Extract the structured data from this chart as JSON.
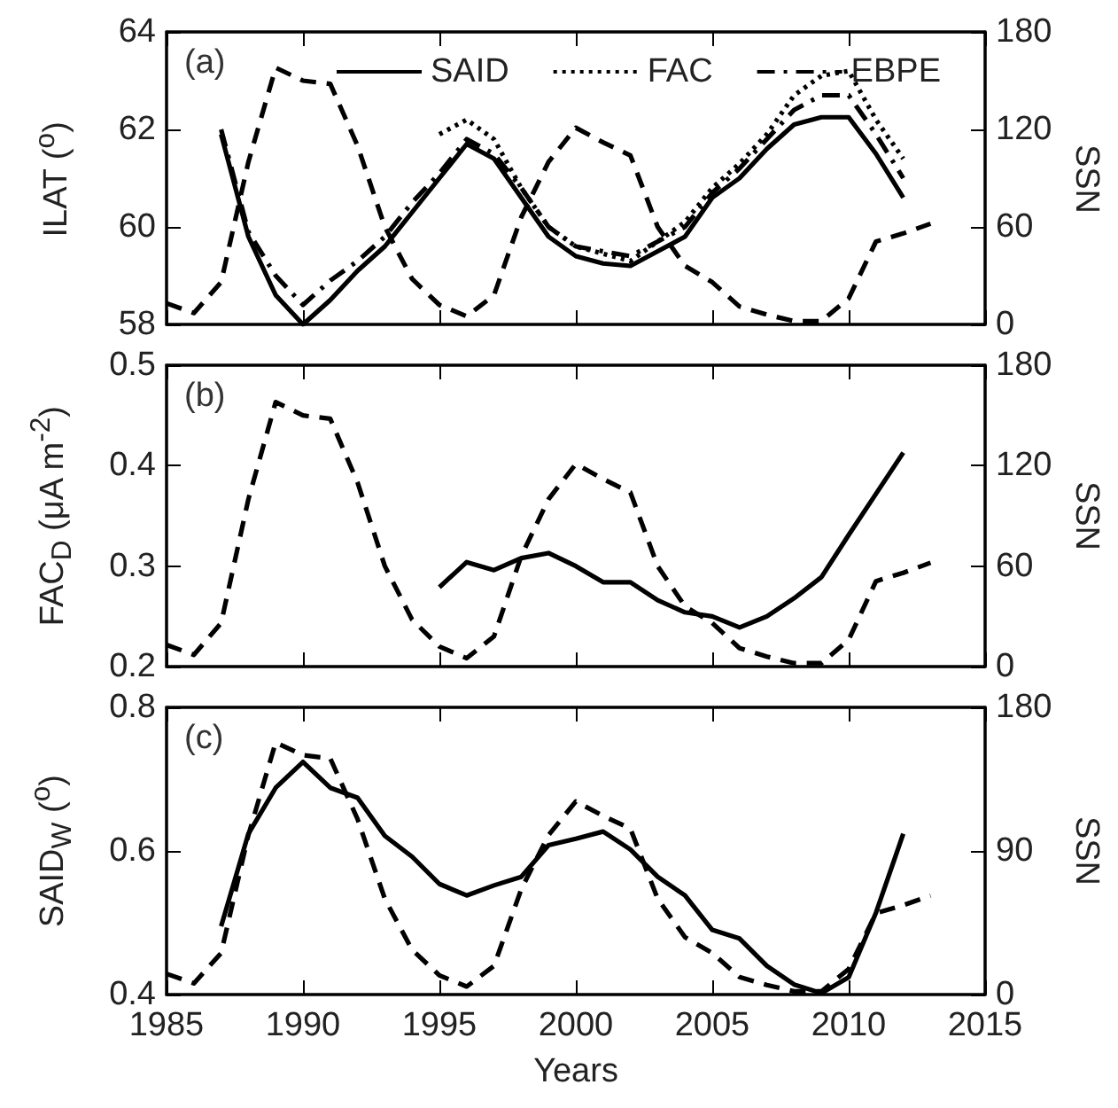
{
  "chart_data": [
    {
      "type": "line",
      "ylabel": "ILAT ($^{o}$)",
      "y2label": "SSN",
      "annotations": [
        "(a)"
      ],
      "legend": "top",
      "tick_labels": "y",
      "marker": "none",
      "xlim": [
        1985,
        2015
      ],
      "xticks": [
        1985,
        1990,
        1995,
        2000,
        2005,
        2010,
        2015
      ],
      "ylim": [
        58,
        64
      ],
      "yticks": [
        58,
        60,
        62,
        64
      ],
      "y2lim": [
        0,
        180
      ],
      "y2ticks": [
        0,
        60,
        120,
        180
      ],
      "series": [
        {
          "name": "SAID",
          "color": "#000000",
          "line_style": "solid",
          "x": [
            1987,
            1988,
            1989,
            1990,
            1991,
            1992,
            1993,
            1994,
            1995,
            1996,
            1997,
            1998,
            1999,
            2000,
            2001,
            2002,
            2003,
            2004,
            2005,
            2006,
            2007,
            2008,
            2009,
            2010,
            2011,
            2012
          ],
          "values": [
            61.9,
            59.8,
            58.6,
            58.0,
            58.5,
            59.1,
            59.6,
            60.3,
            61.0,
            61.7,
            61.4,
            60.6,
            59.8,
            59.4,
            59.25,
            59.2,
            59.5,
            59.8,
            60.6,
            61.0,
            61.6,
            62.1,
            62.25,
            62.25,
            61.5,
            60.6
          ]
        },
        {
          "name": "FAC",
          "color": "#000000",
          "line_style": "dotted",
          "x": [
            1995,
            1996,
            1997,
            1998,
            1999,
            2000,
            2001,
            2002,
            2003,
            2004,
            2005,
            2006,
            2007,
            2008,
            2009,
            2010,
            2011,
            2012
          ],
          "values": [
            61.9,
            62.2,
            61.8,
            60.8,
            60.0,
            59.6,
            59.45,
            59.3,
            59.7,
            60.1,
            60.8,
            61.3,
            61.9,
            62.7,
            63.1,
            63.2,
            62.2,
            61.4
          ]
        },
        {
          "name": "EBPE",
          "color": "#000000",
          "line_style": "dashdot",
          "x": [
            1987,
            1988,
            1989,
            1990,
            1991,
            1992,
            1993,
            1994,
            1995,
            1996,
            1997,
            1998,
            1999,
            2000,
            2001,
            2002,
            2003,
            2004,
            2005,
            2006,
            2007,
            2008,
            2009,
            2010,
            2011,
            2012
          ],
          "values": [
            62.0,
            59.9,
            59.0,
            58.4,
            58.9,
            59.3,
            59.8,
            60.5,
            61.1,
            61.8,
            61.5,
            60.8,
            60.0,
            59.6,
            59.5,
            59.4,
            59.7,
            60.0,
            60.7,
            61.2,
            61.8,
            62.4,
            62.7,
            62.7,
            61.9,
            61.0
          ]
        },
        {
          "color": "#000000",
          "line_style": "dashed",
          "axis": "y2",
          "x": [
            1985,
            1986,
            1987,
            1988,
            1989,
            1990,
            1991,
            1992,
            1993,
            1994,
            1995,
            1996,
            1997,
            1998,
            1999,
            2000,
            2001,
            2002,
            2003,
            2004,
            2005,
            2006,
            2007,
            2008,
            2009,
            2010,
            2011,
            2012,
            2013
          ],
          "values": [
            13,
            7,
            26,
            100,
            158,
            150,
            148,
            110,
            60,
            28,
            12,
            5,
            18,
            66,
            100,
            121,
            112,
            104,
            60,
            36,
            26,
            11,
            6,
            2,
            2,
            16,
            51,
            56,
            62
          ]
        }
      ]
    },
    {
      "type": "line",
      "ylabel": "FAC$_{D}$ (μA m$^{-2}$)",
      "y2label": "SSN",
      "annotations": [
        "(b)"
      ],
      "tick_labels": "y",
      "marker": "none",
      "xlim": [
        1985,
        2015
      ],
      "xticks": [
        1985,
        1990,
        1995,
        2000,
        2005,
        2010,
        2015
      ],
      "ylim": [
        0.2,
        0.5
      ],
      "yticks": [
        0.2,
        0.3,
        0.4,
        0.5
      ],
      "y2lim": [
        0,
        180
      ],
      "y2ticks": [
        0,
        60,
        120,
        180
      ],
      "series": [
        {
          "color": "#000000",
          "line_style": "solid",
          "x": [
            1995,
            1996,
            1997,
            1998,
            1999,
            2000,
            2001,
            2002,
            2003,
            2004,
            2005,
            2006,
            2007,
            2008,
            2009,
            2010,
            2011,
            2012
          ],
          "values": [
            0.279,
            0.304,
            0.296,
            0.308,
            0.313,
            0.3,
            0.284,
            0.284,
            0.266,
            0.254,
            0.25,
            0.239,
            0.25,
            0.268,
            0.289,
            0.331,
            0.372,
            0.413
          ]
        },
        {
          "color": "#000000",
          "line_style": "dashed",
          "axis": "y2",
          "x": [
            1985,
            1986,
            1987,
            1988,
            1989,
            1990,
            1991,
            1992,
            1993,
            1994,
            1995,
            1996,
            1997,
            1998,
            1999,
            2000,
            2001,
            2002,
            2003,
            2004,
            2005,
            2006,
            2007,
            2008,
            2009,
            2010,
            2011,
            2012,
            2013
          ],
          "values": [
            13,
            7,
            26,
            100,
            158,
            150,
            148,
            110,
            60,
            28,
            12,
            5,
            18,
            66,
            100,
            121,
            112,
            104,
            60,
            36,
            26,
            11,
            6,
            2,
            2,
            16,
            51,
            56,
            62
          ]
        }
      ]
    },
    {
      "type": "line",
      "xlabel": "Years",
      "ylabel": "SAID$_{W}$ ($^{o}$)",
      "y2label": "SSN",
      "annotations": [
        "(c)"
      ],
      "marker": "none",
      "xlim": [
        1985,
        2015
      ],
      "xticks": [
        1985,
        1990,
        1995,
        2000,
        2005,
        2010,
        2015
      ],
      "ylim": [
        0.4,
        0.8
      ],
      "yticks": [
        0.4,
        0.6,
        0.8
      ],
      "y2lim": [
        0,
        180
      ],
      "y2ticks": [
        0,
        90,
        180
      ],
      "series": [
        {
          "color": "#000000",
          "line_style": "solid",
          "x": [
            1987,
            1988,
            1989,
            1990,
            1991,
            1992,
            1993,
            1994,
            1995,
            1996,
            1997,
            1998,
            1999,
            2000,
            2001,
            2002,
            2003,
            2004,
            2005,
            2006,
            2007,
            2008,
            2009,
            2010,
            2011,
            2012
          ],
          "values": [
            0.495,
            0.624,
            0.688,
            0.724,
            0.688,
            0.674,
            0.621,
            0.592,
            0.554,
            0.538,
            0.552,
            0.564,
            0.608,
            0.617,
            0.627,
            0.602,
            0.564,
            0.538,
            0.49,
            0.478,
            0.44,
            0.414,
            0.402,
            0.424,
            0.514,
            0.624
          ]
        },
        {
          "color": "#000000",
          "line_style": "dashed",
          "axis": "y2",
          "x": [
            1985,
            1986,
            1987,
            1988,
            1989,
            1990,
            1991,
            1992,
            1993,
            1994,
            1995,
            1996,
            1997,
            1998,
            1999,
            2000,
            2001,
            2002,
            2003,
            2004,
            2005,
            2006,
            2007,
            2008,
            2009,
            2010,
            2011,
            2012,
            2013
          ],
          "values": [
            13,
            7,
            26,
            100,
            158,
            150,
            148,
            110,
            60,
            28,
            12,
            5,
            18,
            66,
            100,
            121,
            112,
            104,
            60,
            36,
            26,
            11,
            6,
            2,
            2,
            16,
            51,
            56,
            62
          ]
        }
      ]
    }
  ]
}
